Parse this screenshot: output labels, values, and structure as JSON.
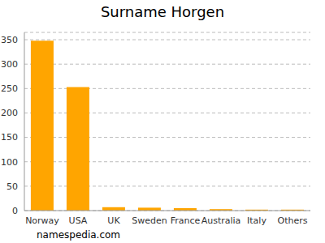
{
  "chart_data": {
    "type": "bar",
    "title": "Surname Horgen",
    "annotation": "namespedia.com",
    "categories": [
      "Norway",
      "USA",
      "UK",
      "Sweden",
      "France",
      "Australia",
      "Italy",
      "Others"
    ],
    "values": [
      348,
      253,
      7,
      6,
      5,
      3,
      2,
      2
    ],
    "color": "#ffa500",
    "ylim": [
      0,
      365
    ],
    "yticks": [
      0,
      50,
      100,
      150,
      200,
      250,
      300,
      350
    ],
    "grid": true
  }
}
